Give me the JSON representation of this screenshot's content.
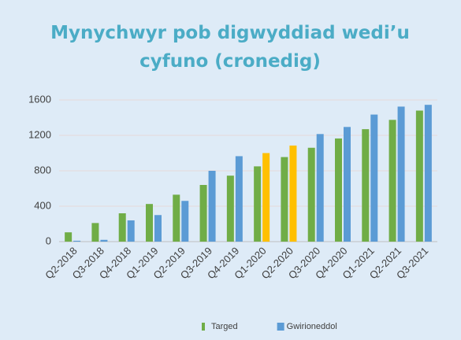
{
  "chart_data": {
    "type": "bar",
    "title": "Mynychwyr pob digwyddiad wedi’u cyfuno (cronedig)",
    "categories": [
      "Q2-2018",
      "Q3-2018",
      "Q4-2018",
      "Q1-2019",
      "Q2-2019",
      "Q3-2019",
      "Q4-2019",
      "Q1-2020",
      "Q2-2020",
      "Q3-2020",
      "Q4-2020",
      "Q1-2021",
      "Q2-2021",
      "Q3-2021"
    ],
    "series": [
      {
        "name": "Targed",
        "color": "#70ad47",
        "values": [
          105,
          210,
          320,
          425,
          530,
          640,
          745,
          850,
          955,
          1060,
          1165,
          1270,
          1375,
          1480
        ]
      },
      {
        "name": "Gwirioneddol",
        "color": "#5b9bd5",
        "values": [
          10,
          20,
          240,
          300,
          460,
          800,
          965,
          1000,
          1085,
          1215,
          1295,
          1435,
          1525,
          1545
        ],
        "colors": [
          "#5b9bd5",
          "#5b9bd5",
          "#5b9bd5",
          "#5b9bd5",
          "#5b9bd5",
          "#5b9bd5",
          "#5b9bd5",
          "#ffc000",
          "#ffc000",
          "#5b9bd5",
          "#5b9bd5",
          "#5b9bd5",
          "#5b9bd5",
          "#5b9bd5"
        ]
      }
    ],
    "ylim": [
      0,
      1600
    ],
    "yticks": [
      0,
      400,
      800,
      1200,
      1600
    ],
    "grid": true,
    "legend": "bottom"
  }
}
